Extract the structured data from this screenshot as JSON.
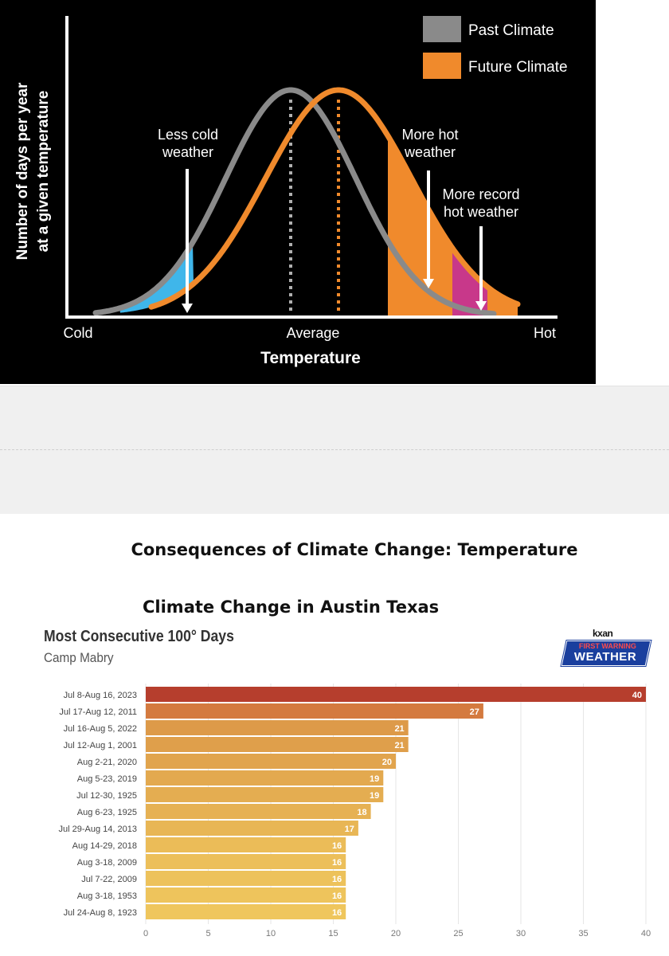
{
  "chart_data": [
    {
      "type": "line",
      "series": [
        {
          "name": "Past Climate",
          "color": "#8a8a8a"
        },
        {
          "name": "Future Climate",
          "color": "#f08a2c"
        }
      ],
      "legend": [
        "Past Climate",
        "Future Climate"
      ],
      "ylabel_lines": [
        "Number of days per year",
        "at a given temperature"
      ],
      "xlabel": "Temperature",
      "x_ticks": [
        "Cold",
        "Average",
        "Hot"
      ],
      "annotations": [
        {
          "lines": [
            "Less cold",
            "weather"
          ]
        },
        {
          "lines": [
            "More hot",
            "weather"
          ]
        },
        {
          "lines": [
            "More record",
            "hot weather"
          ]
        }
      ],
      "colors": {
        "background": "#000000",
        "cold_region": "#3fb6ea",
        "hot_region": "#f08a2c",
        "record_region": "#c8388a"
      }
    },
    {
      "type": "bar",
      "orientation": "horizontal",
      "title": "Most Consecutive 100° Days",
      "subtitle": "Camp Mabry",
      "categories": [
        "Jul 8-Aug 16, 2023",
        "Jul 17-Aug 12, 2011",
        "Jul 16-Aug 5, 2022",
        "Jul 12-Aug 1, 2001",
        "Aug 2-21, 2020",
        "Aug 5-23, 2019",
        "Jul 12-30, 1925",
        "Aug 6-23, 1925",
        "Jul 29-Aug 14, 2013",
        "Aug 14-29, 2018",
        "Aug 3-18, 2009",
        "Jul 7-22, 2009",
        "Aug 3-18, 1953",
        "Jul 24-Aug 8, 1923"
      ],
      "values": [
        40,
        27,
        21,
        21,
        20,
        19,
        19,
        18,
        17,
        16,
        16,
        16,
        16,
        16
      ],
      "xlim": [
        0,
        40
      ],
      "x_ticks": [
        0,
        5,
        10,
        15,
        20,
        25,
        30,
        35,
        40
      ],
      "grid": true
    }
  ],
  "headings": {
    "consequences": "Consequences of Climate Change:  Temperature",
    "location": "Climate Change in Austin Texas"
  },
  "logo": {
    "brand": "kxan",
    "line1": "FIRST WARNING",
    "line2": "WEATHER"
  }
}
